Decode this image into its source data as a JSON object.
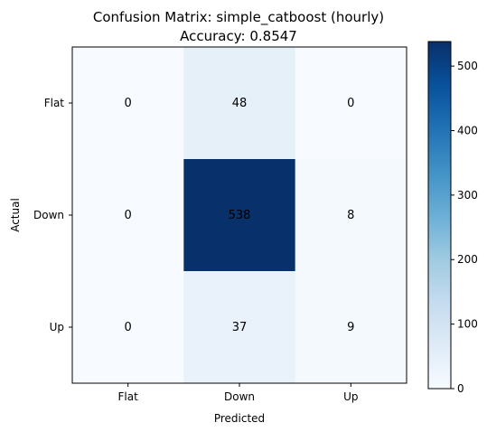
{
  "chart_data": {
    "type": "heatmap",
    "title_line1": "Confusion Matrix: simple_catboost (hourly)",
    "title_line2": "Accuracy: 0.8547",
    "xlabel": "Predicted",
    "ylabel": "Actual",
    "x_categories": [
      "Flat",
      "Down",
      "Up"
    ],
    "y_categories": [
      "Flat",
      "Down",
      "Up"
    ],
    "values": [
      [
        0,
        48,
        0
      ],
      [
        0,
        538,
        8
      ],
      [
        0,
        37,
        9
      ]
    ],
    "colormap": "Blues",
    "color_range": [
      0,
      538
    ],
    "colorbar_ticks": [
      0,
      100,
      200,
      300,
      400,
      500
    ],
    "colorbar_tick_labels": [
      "0",
      "100",
      "200",
      "300",
      "400",
      "500"
    ]
  }
}
